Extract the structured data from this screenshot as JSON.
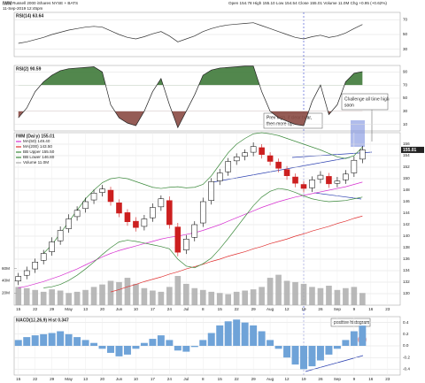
{
  "header": {
    "symbol": "IWM",
    "name": "Russell 2000 iShares NYSE + BATS",
    "date": "11-Sep-2019 12:45pm",
    "quote": "Open 154.78 High 155.10 Low 154.54 Close 155.01 Volume 11.0M Chg +0.95 (+0.62%)"
  },
  "chart_data": [
    {
      "type": "line",
      "title": "RSI(14) 63.64",
      "color": "#333333",
      "grid": true,
      "values": [
        38,
        40,
        43,
        46,
        50,
        53,
        56,
        58,
        60,
        61,
        60,
        55,
        50,
        46,
        44,
        47,
        51,
        54,
        48,
        40,
        44,
        48,
        54,
        58,
        61,
        63,
        64,
        65,
        66,
        62,
        58,
        54,
        50,
        46,
        44,
        47,
        49,
        46,
        48,
        52,
        58,
        63.64,
        null,
        null,
        null,
        null
      ],
      "ylim": [
        20,
        80
      ],
      "yticks": [
        30,
        50,
        70
      ]
    },
    {
      "type": "line",
      "title": "RSI(2) 90.59",
      "color": "#222222",
      "grid": true,
      "fill_levels": [
        70,
        30
      ],
      "fill_colors": [
        "#3f7a3a",
        "#8a4a44"
      ],
      "values": [
        20,
        35,
        60,
        75,
        85,
        92,
        95,
        96,
        97,
        98,
        90,
        40,
        20,
        12,
        8,
        30,
        60,
        80,
        40,
        5,
        30,
        55,
        85,
        93,
        96,
        97,
        98,
        99,
        99,
        60,
        30,
        20,
        15,
        10,
        8,
        45,
        70,
        25,
        40,
        75,
        88,
        90.59,
        null,
        null,
        null,
        null
      ],
      "ylim": [
        0,
        100
      ],
      "yticks": [
        10,
        30,
        50,
        70,
        90
      ]
    },
    {
      "type": "candlestick",
      "title": "IWM (Daily) 155.01",
      "grid": true,
      "up_color": "#000000",
      "down_color": "#cc1f1f",
      "categories": [
        "15",
        null,
        "22",
        null,
        "29",
        null,
        "May",
        null,
        "13",
        null,
        "20",
        null,
        "Jun",
        null,
        "10",
        null,
        "17",
        null,
        "24",
        null,
        "Jul",
        null,
        "8",
        null,
        "15",
        null,
        "22",
        null,
        "29",
        null,
        "Aug",
        null,
        "12",
        null,
        "19",
        null,
        "26",
        null,
        "Sep",
        null,
        "9",
        null,
        "16",
        null,
        "23",
        null
      ],
      "candles": {
        "open": [
          132.2,
          133.2,
          134.3,
          135.8,
          137.3,
          139.2,
          141.3,
          143.4,
          144.8,
          146.3,
          147.6,
          148.0,
          145.8,
          144.1,
          142.6,
          141.7,
          143.2,
          145.1,
          146.2,
          141.6,
          137.6,
          139.8,
          142.3,
          146.2,
          149.6,
          151.2,
          153.1,
          153.9,
          154.6,
          155.4,
          154.0,
          152.9,
          151.6,
          150.3,
          149.0,
          148.4,
          149.9,
          150.4,
          149.2,
          149.8,
          151.0,
          153.4,
          null,
          null,
          null,
          null
        ],
        "high": [
          133.6,
          134.7,
          136.1,
          137.6,
          139.8,
          141.7,
          143.8,
          145.2,
          146.7,
          148.1,
          148.9,
          148.6,
          146.4,
          144.7,
          143.3,
          143.7,
          145.7,
          147.1,
          146.9,
          142.3,
          140.2,
          142.6,
          146.7,
          150.1,
          151.7,
          153.6,
          154.4,
          155.1,
          156.3,
          156.0,
          154.6,
          153.5,
          152.2,
          150.9,
          149.6,
          150.4,
          151.3,
          151.0,
          150.3,
          151.5,
          153.9,
          155.7,
          null,
          null,
          null,
          null
        ],
        "low": [
          131.5,
          132.5,
          133.6,
          135.1,
          136.6,
          138.5,
          140.6,
          142.7,
          144.1,
          145.6,
          146.9,
          145.3,
          143.3,
          141.8,
          140.8,
          141.0,
          142.5,
          144.4,
          141.3,
          136.5,
          136.9,
          139.1,
          141.6,
          145.5,
          148.9,
          150.5,
          152.4,
          153.2,
          153.9,
          153.5,
          152.3,
          151.1,
          149.8,
          148.5,
          147.6,
          147.7,
          149.2,
          148.4,
          148.5,
          149.1,
          150.3,
          152.7,
          null,
          null,
          null,
          null
        ],
        "close": [
          133,
          134,
          135.5,
          137,
          139,
          141,
          143,
          144.5,
          146,
          147.5,
          148.2,
          146,
          144,
          142.5,
          141.5,
          143,
          145,
          146.5,
          142,
          137.2,
          139.5,
          142,
          146,
          149.5,
          151,
          153,
          153.8,
          154.5,
          155.6,
          154.2,
          153,
          151.8,
          150.5,
          149.2,
          148.3,
          149.8,
          150.6,
          149.1,
          149.6,
          150.8,
          153.2,
          155.01,
          null,
          null,
          null,
          null
        ]
      },
      "series": [
        {
          "name": "MA(50) 149.40",
          "color": "#d62fd0",
          "values": [
            131.0,
            131.3,
            131.7,
            132.1,
            132.6,
            133.1,
            133.7,
            134.3,
            135.0,
            135.7,
            136.4,
            137.0,
            137.5,
            137.9,
            138.3,
            138.7,
            139.1,
            139.5,
            139.8,
            140.0,
            140.3,
            140.6,
            141.0,
            141.5,
            142.0,
            142.6,
            143.2,
            143.8,
            144.4,
            145.0,
            145.5,
            146.0,
            146.4,
            146.8,
            147.1,
            147.4,
            147.7,
            148.0,
            148.3,
            148.6,
            149.0,
            149.4,
            null,
            null,
            null,
            null
          ]
        },
        {
          "name": "MA(200) 143.50",
          "color": "#e03030",
          "values": [
            null,
            null,
            null,
            null,
            null,
            null,
            null,
            null,
            null,
            null,
            null,
            130.3,
            130.7,
            131.2,
            131.6,
            132.1,
            132.5,
            132.9,
            133.4,
            133.8,
            134.3,
            134.7,
            135.1,
            135.6,
            136.0,
            136.5,
            136.9,
            137.3,
            137.8,
            138.2,
            138.7,
            139.1,
            139.5,
            140.0,
            140.4,
            140.9,
            141.3,
            141.7,
            142.2,
            142.6,
            143.1,
            143.5,
            null,
            null,
            null,
            null
          ]
        },
        {
          "name": "BB Upper 155.50",
          "color": "#3c8a3c",
          "values": [
            null,
            null,
            null,
            137.0,
            138.5,
            140.5,
            142.5,
            144.5,
            146.5,
            148.0,
            149.3,
            150.0,
            150.2,
            150.0,
            149.5,
            149.0,
            148.5,
            148.3,
            148.5,
            148.6,
            148.4,
            148.5,
            149.0,
            150.5,
            152.5,
            154.5,
            156.0,
            157.0,
            157.8,
            158.0,
            157.8,
            157.5,
            157.0,
            156.5,
            156.0,
            155.5,
            155.0,
            154.4,
            153.8,
            153.5,
            154.0,
            155.5,
            null,
            null,
            null,
            null
          ]
        },
        {
          "name": "BB Lower 146.80",
          "color": "#3c8a3c",
          "values": [
            null,
            null,
            null,
            131.0,
            131.2,
            131.6,
            132.3,
            133.2,
            134.3,
            135.5,
            136.8,
            138.0,
            139.0,
            139.3,
            139.1,
            138.8,
            138.5,
            138.2,
            137.8,
            136.0,
            134.8,
            134.5,
            135.2,
            136.2,
            137.8,
            139.6,
            141.5,
            143.4,
            145.3,
            146.8,
            147.8,
            148.3,
            148.1,
            147.6,
            147.0,
            146.5,
            146.2,
            146.0,
            146.1,
            146.2,
            146.5,
            146.8,
            null,
            null,
            null,
            null
          ]
        }
      ],
      "volume": {
        "name": "Volume 11.0M",
        "color": "#a8a8a8",
        "values": [
          30,
          28,
          25,
          22,
          26,
          24,
          20,
          22,
          25,
          30,
          34,
          40,
          38,
          45,
          35,
          28,
          24,
          22,
          30,
          48,
          35,
          28,
          25,
          22,
          20,
          18,
          22,
          24,
          26,
          30,
          45,
          50,
          40,
          38,
          35,
          30,
          28,
          32,
          25,
          28,
          30,
          20,
          null,
          null,
          null,
          null
        ],
        "ylim": [
          0,
          80
        ],
        "yticks": [
          {
            "value": 20,
            "label": "20M"
          },
          {
            "value": 40,
            "label": "40M"
          },
          {
            "value": 60,
            "label": "60M"
          }
        ]
      },
      "ylim": [
        128,
        158
      ],
      "yticks": [
        130,
        132,
        134,
        136,
        138,
        140,
        142,
        144,
        146,
        148,
        150,
        152,
        154,
        156
      ],
      "annotations": [
        "Prev high, if clear hear,",
        "then more up.",
        "Challenge all time high",
        "soon"
      ]
    },
    {
      "type": "bar",
      "title": "MACD(12,26,9) Hist 0.347",
      "color": "#6fa3d8",
      "grid": true,
      "categories": [
        "15",
        null,
        "22",
        null,
        "29",
        null,
        "May",
        null,
        "13",
        null,
        "20",
        null,
        "Jun",
        null,
        "10",
        null,
        "17",
        null,
        "24",
        null,
        "Jul",
        null,
        "8",
        null,
        "15",
        null,
        "22",
        null,
        "29",
        null,
        "Aug",
        null,
        "12",
        null,
        "19",
        null,
        "26",
        null,
        "Sep",
        null,
        "9",
        null,
        "16",
        null,
        "23",
        null
      ],
      "values": [
        0.1,
        0.15,
        0.18,
        0.2,
        0.22,
        0.25,
        0.2,
        0.15,
        0.1,
        0.05,
        -0.05,
        -0.12,
        -0.18,
        -0.15,
        -0.05,
        0.05,
        0.12,
        0.18,
        0.1,
        -0.08,
        -0.1,
        -0.02,
        0.1,
        0.22,
        0.35,
        0.42,
        0.45,
        0.4,
        0.35,
        0.25,
        0.1,
        -0.05,
        -0.2,
        -0.32,
        -0.4,
        -0.35,
        -0.25,
        -0.15,
        -0.05,
        0.1,
        0.25,
        0.347,
        null,
        null,
        null,
        null
      ],
      "ylim": [
        -0.5,
        0.5
      ],
      "yticks": [
        -0.4,
        -0.2,
        {
          "value": 0,
          "label": "0.0"
        },
        0.2,
        0.4
      ],
      "annotations": [
        "positive histogram"
      ]
    }
  ]
}
